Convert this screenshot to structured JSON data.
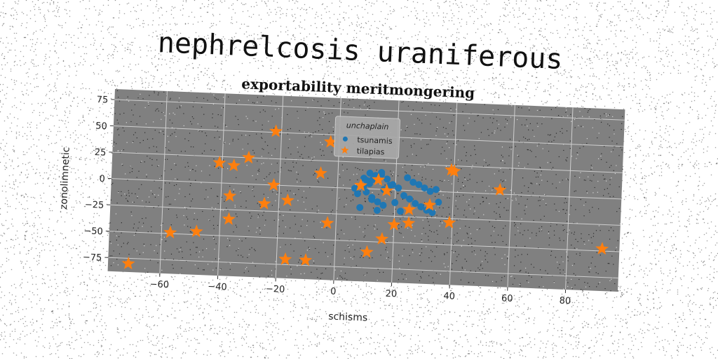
{
  "figure": {
    "suptitle": "nephrelcosis uraniferous"
  },
  "chart_data": {
    "type": "scatter",
    "title": "exportability meritmongering",
    "xlabel": "schisms",
    "ylabel": "zonolimnetic",
    "xlim": [
      -78,
      98
    ],
    "ylim": [
      -88,
      85
    ],
    "x_ticks": [
      -60,
      -40,
      -20,
      0,
      20,
      40,
      60,
      80
    ],
    "y_ticks": [
      75,
      50,
      25,
      0,
      -25,
      -50,
      -75
    ],
    "x_tick_labels": [
      "−60",
      "−40",
      "−20",
      "0",
      "20",
      "40",
      "60",
      "80"
    ],
    "y_tick_labels": [
      "75",
      "50",
      "25",
      "0",
      "−25",
      "−50",
      "−75"
    ],
    "grid": true,
    "background": "#808080",
    "legend": {
      "title": "unchaplain",
      "placement": "top-center"
    },
    "series": [
      {
        "name": "tsunamis",
        "marker": "circle",
        "color": "#1f77b4",
        "x": [
          7,
          9,
          11,
          12,
          13,
          15,
          17,
          10,
          12,
          14,
          16,
          18,
          9,
          11,
          13,
          15,
          19,
          21,
          23,
          25,
          27,
          29,
          31,
          33,
          35,
          24,
          26,
          28,
          30,
          32,
          34,
          22,
          8,
          6,
          14,
          16,
          20,
          12,
          10
        ],
        "y": [
          -5,
          2,
          5,
          9,
          12,
          14,
          10,
          -3,
          -8,
          -12,
          0,
          4,
          10,
          15,
          13,
          16,
          5,
          2,
          -5,
          -8,
          -12,
          -15,
          -18,
          -20,
          -10,
          12,
          8,
          6,
          3,
          0,
          2,
          -20,
          -18,
          0,
          -20,
          -15,
          -12,
          -10,
          8
        ]
      },
      {
        "name": "tilapias",
        "marker": "star",
        "color": "#ff7f0e",
        "x": [
          -22,
          -3,
          -31,
          -41,
          -36,
          -6,
          -22,
          -37,
          -17,
          -25,
          -37,
          -3,
          -57,
          -48,
          -17,
          -10,
          -71,
          8,
          11,
          14,
          16,
          17,
          20,
          25,
          25,
          32,
          39,
          40,
          39,
          56,
          92
        ],
        "y": [
          51,
          43,
          25,
          19,
          17,
          13,
          0,
          -12,
          -14,
          -18,
          -34,
          -34,
          -49,
          -47,
          -70,
          -70,
          -80,
          3,
          -60,
          9,
          -47,
          -1,
          -33,
          -18,
          -31,
          -13,
          -29,
          20,
          21,
          4,
          -48
        ]
      }
    ]
  }
}
